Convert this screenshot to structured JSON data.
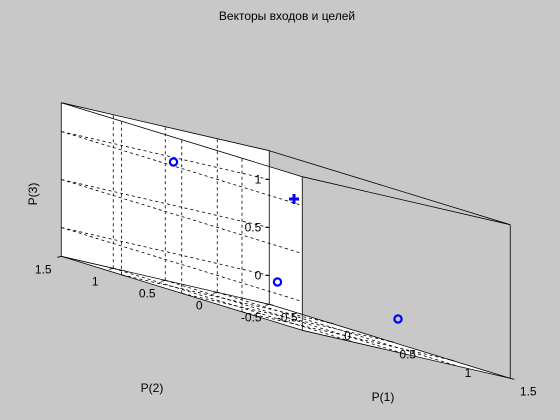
{
  "chart_data": {
    "type": "scatter3d",
    "title": "Векторы входов и целей",
    "xlabel": "P(1)",
    "ylabel": "P(2)",
    "zlabel": "P(3)",
    "xlim": [
      -0.5,
      1.5
    ],
    "ylim": [
      -0.5,
      1.5
    ],
    "zlim": [
      -0.3,
      1.3
    ],
    "xticks": [
      -0.5,
      0,
      0.5,
      1,
      1.5
    ],
    "xtick_labels": [
      "-0.5",
      "0",
      "0.5",
      "1",
      "1.5"
    ],
    "yticks": [
      -0.5,
      0,
      0.5,
      1,
      1.5
    ],
    "ytick_labels": [
      "-0.5",
      "0",
      "0.5",
      "1",
      "1.5"
    ],
    "zticks": [
      0,
      0.5,
      1
    ],
    "ztick_labels": [
      "0",
      "0.5",
      "1"
    ],
    "grid": true,
    "series": [
      {
        "marker": "o",
        "color": "#0000ff",
        "points": [
          {
            "x": 0,
            "y": 0,
            "z": 0
          },
          {
            "x": 1,
            "y": 0,
            "z": 0
          },
          {
            "x": 0,
            "y": 1,
            "z": 1
          }
        ]
      },
      {
        "marker": "+",
        "color": "#0000ff",
        "points": [
          {
            "x": 1,
            "y": 1,
            "z": 1
          }
        ]
      }
    ]
  }
}
